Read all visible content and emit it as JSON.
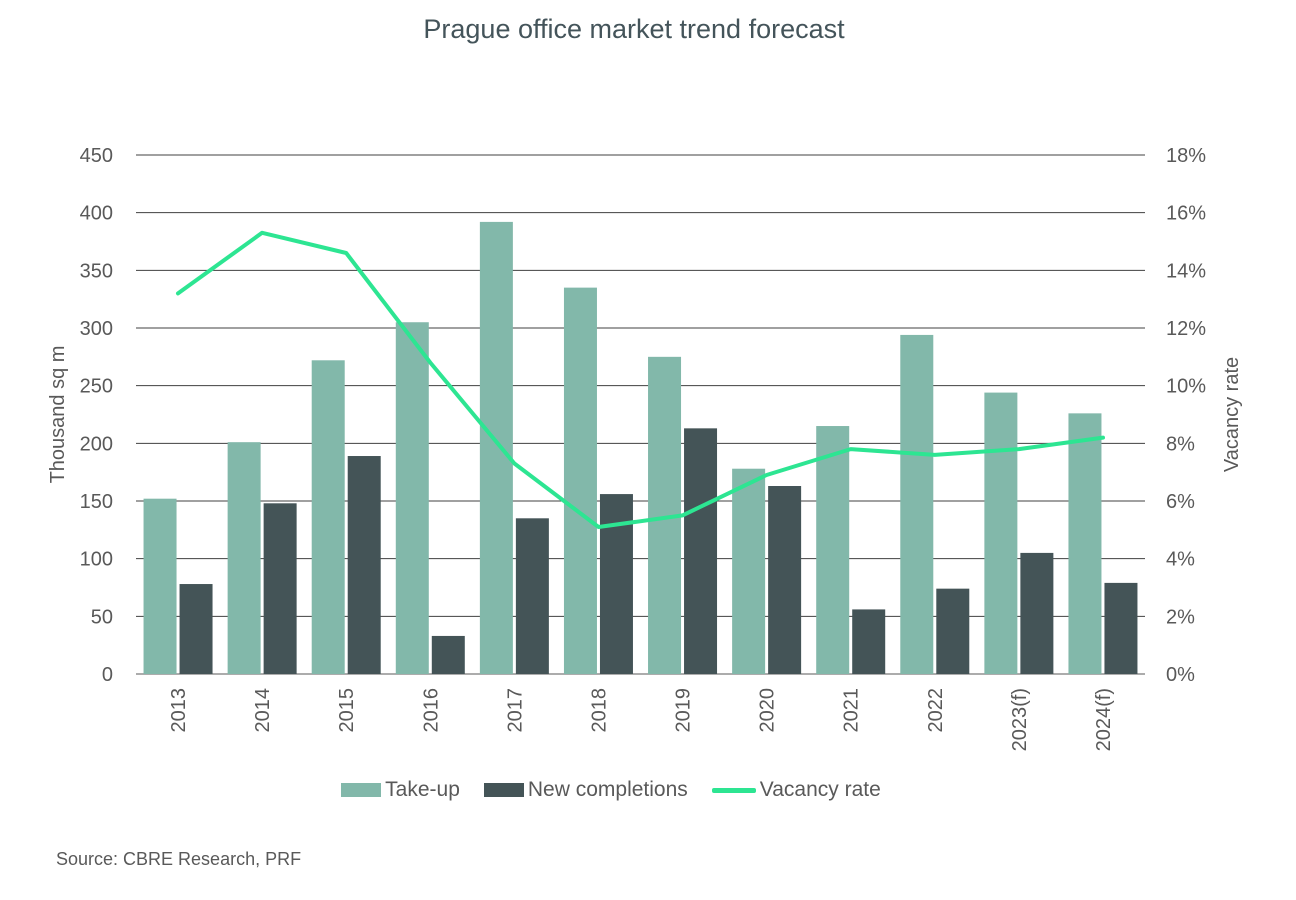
{
  "title": "Prague office market trend forecast",
  "source": "Source: CBRE Research, PRF",
  "chart_data": {
    "type": "bar",
    "title": "Prague office market trend forecast",
    "categories": [
      "2013",
      "2014",
      "2015",
      "2016",
      "2017",
      "2018",
      "2019",
      "2020",
      "2021",
      "2022",
      "2023(f)",
      "2024(f)"
    ],
    "series": [
      {
        "name": "Take-up",
        "type": "bar",
        "axis": "left",
        "color": "#82b8aa",
        "values": [
          152,
          201,
          272,
          305,
          392,
          335,
          275,
          178,
          215,
          294,
          244,
          226
        ]
      },
      {
        "name": "New completions",
        "type": "bar",
        "axis": "left",
        "color": "#445457",
        "values": [
          78,
          148,
          189,
          33,
          135,
          156,
          213,
          163,
          56,
          74,
          105,
          79
        ]
      },
      {
        "name": "Vacancy rate",
        "type": "line",
        "axis": "right",
        "color": "#2de592",
        "values": [
          13.2,
          15.3,
          14.6,
          10.8,
          7.3,
          5.1,
          5.5,
          6.9,
          7.8,
          7.6,
          7.8,
          8.2
        ]
      }
    ],
    "ylabel": "Thousand sq m",
    "ylim": [
      0,
      450
    ],
    "yticks": [
      "0",
      "50",
      "100",
      "150",
      "200",
      "250",
      "300",
      "350",
      "400",
      "450"
    ],
    "y2label": "Vacancy rate",
    "y2lim": [
      0,
      18
    ],
    "y2ticks": [
      "0%",
      "2%",
      "4%",
      "6%",
      "8%",
      "10%",
      "12%",
      "14%",
      "16%",
      "18%"
    ],
    "grid": true,
    "legend": "bottom"
  }
}
